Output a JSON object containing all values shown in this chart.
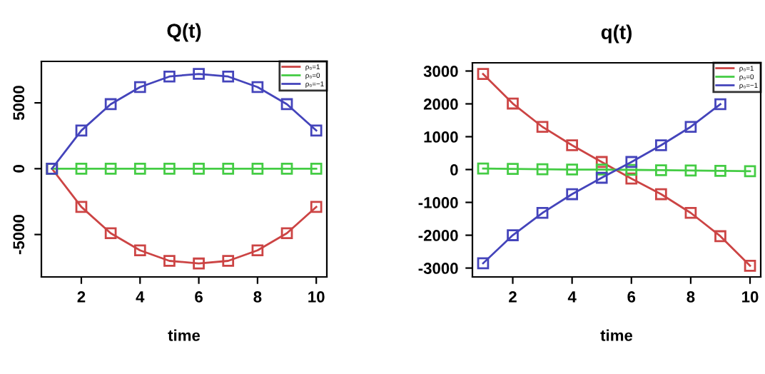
{
  "chart_data": [
    {
      "type": "line",
      "title": "Q(t)",
      "xlabel": "time",
      "x": [
        1,
        2,
        3,
        4,
        5,
        6,
        7,
        8,
        9,
        10
      ],
      "xlim": [
        0.64,
        10.36
      ],
      "xticks": [
        2,
        4,
        6,
        8,
        10
      ],
      "ylim": [
        -8220,
        8150
      ],
      "yticks": [
        -5000,
        0,
        5000
      ],
      "marker": "square",
      "legend": "top right",
      "grid": false,
      "series": [
        {
          "name": "ρ₀=1",
          "color": "#cc4444",
          "values": [
            0,
            -2900,
            -4900,
            -6200,
            -7000,
            -7200,
            -7000,
            -6200,
            -4900,
            -2900
          ]
        },
        {
          "name": "ρ₀=0",
          "color": "#44cc44",
          "values": [
            0,
            0,
            0,
            0,
            0,
            0,
            0,
            0,
            0,
            0
          ]
        },
        {
          "name": "ρ₀=−1",
          "color": "#4444bb",
          "values": [
            0,
            2900,
            4900,
            6200,
            7000,
            7200,
            7000,
            6200,
            4900,
            2900
          ]
        }
      ]
    },
    {
      "type": "line",
      "title": "q(t)",
      "xlabel": "time",
      "x": [
        1,
        2,
        3,
        4,
        5,
        6,
        7,
        8,
        9,
        10
      ],
      "xlim": [
        0.64,
        10.36
      ],
      "xticks": [
        2,
        4,
        6,
        8,
        10
      ],
      "ylim": [
        -3270,
        3250
      ],
      "yticks": [
        -3000,
        -2000,
        -1000,
        0,
        1000,
        2000,
        3000
      ],
      "marker": "square",
      "legend": "top right",
      "grid": false,
      "series": [
        {
          "name": "ρ₀=1",
          "color": "#cc4444",
          "values": [
            2910,
            2010,
            1300,
            740,
            230,
            -275,
            -750,
            -1320,
            -2030,
            -2930
          ]
        },
        {
          "name": "ρ₀=0",
          "color": "#44cc44",
          "values": [
            30,
            20,
            10,
            0,
            0,
            -10,
            -20,
            -30,
            -40,
            -50
          ]
        },
        {
          "name": "ρ₀=−1",
          "color": "#4444bb",
          "values": [
            -2855,
            -2000,
            -1320,
            -750,
            -250,
            230,
            740,
            1300,
            1990,
            null
          ]
        }
      ]
    }
  ]
}
